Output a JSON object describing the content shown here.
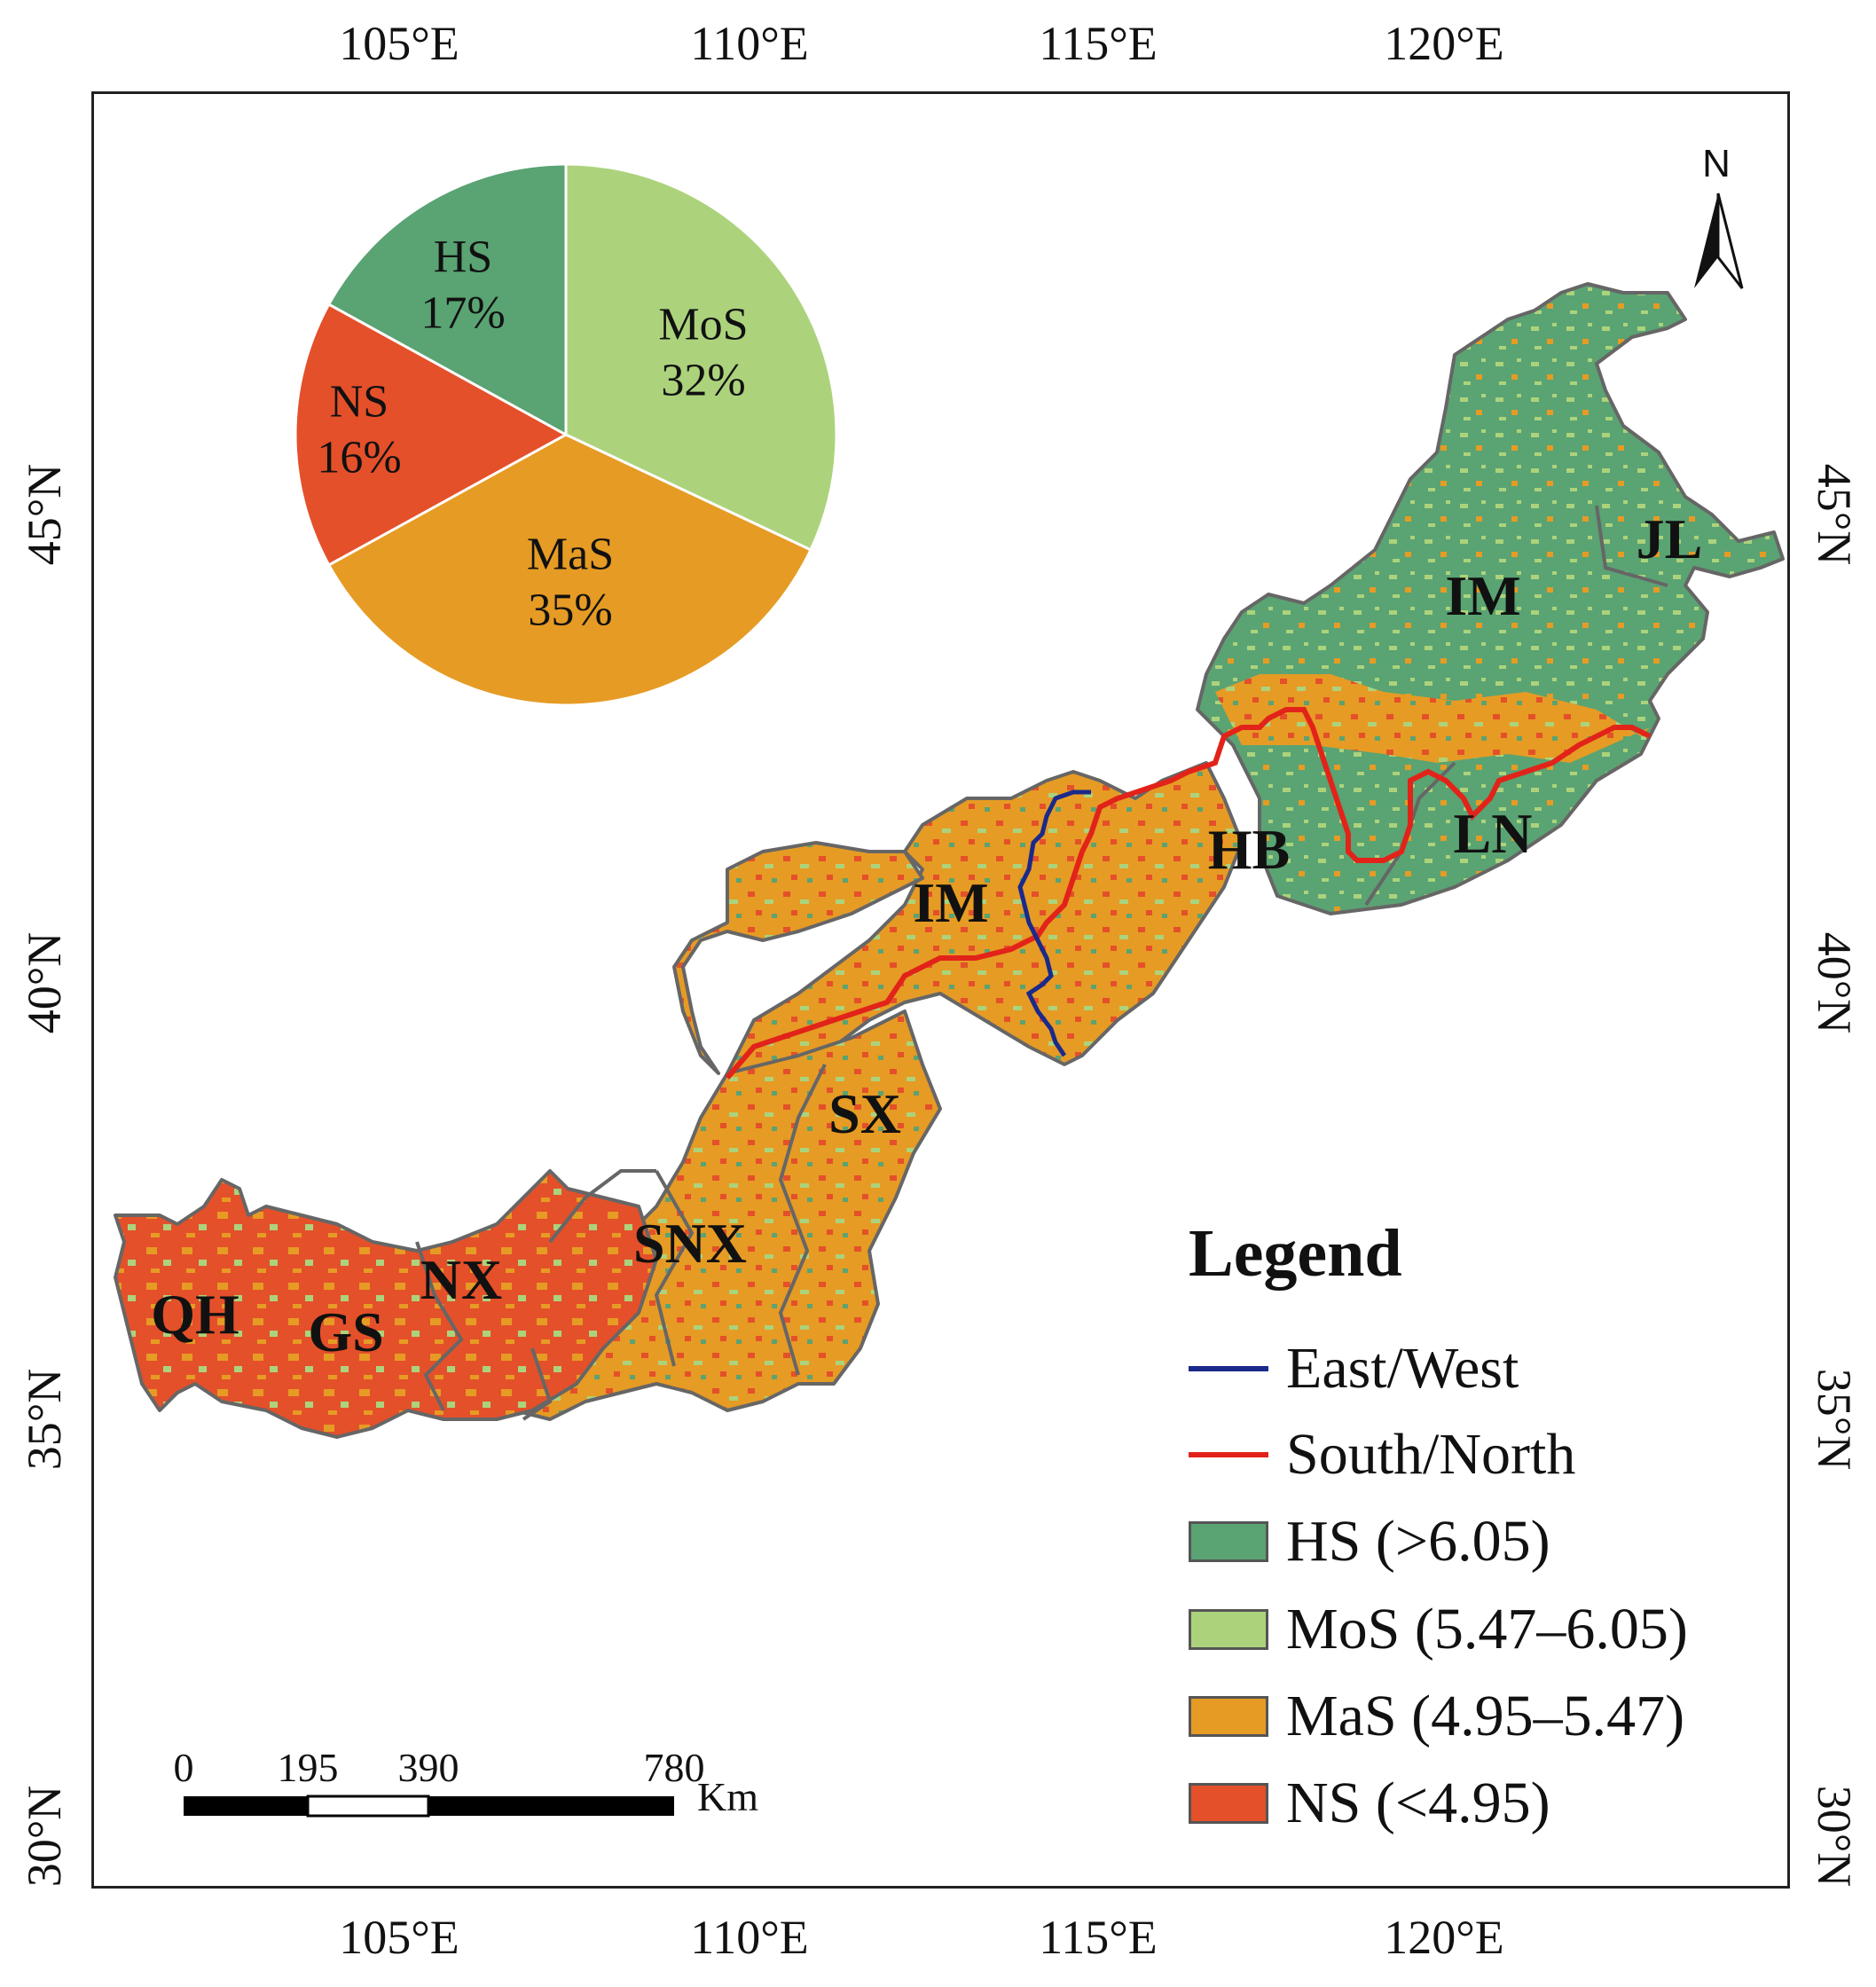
{
  "axes": {
    "top_ticks": [
      "105°E",
      "110°E",
      "115°E",
      "120°E"
    ],
    "bottom_ticks": [
      "105°E",
      "110°E",
      "115°E",
      "120°E"
    ],
    "left_ticks": [
      "45°N",
      "40°N",
      "35°N",
      "30°N"
    ],
    "right_ticks": [
      "45°N",
      "40°N",
      "35°N",
      "30°N"
    ]
  },
  "pie": {
    "slices": [
      {
        "name": "MoS",
        "pct_label": "32%",
        "value": 32,
        "color": "#acd37c"
      },
      {
        "name": "MaS",
        "pct_label": "35%",
        "value": 35,
        "color": "#e69b24"
      },
      {
        "name": "NS",
        "pct_label": "16%",
        "value": 16,
        "color": "#e4502a"
      },
      {
        "name": "HS",
        "pct_label": "17%",
        "value": 17,
        "color": "#5aa373"
      }
    ]
  },
  "provinces": [
    "QH",
    "GS",
    "NX",
    "SNX",
    "SX",
    "IM",
    "HB",
    "LN",
    "JL",
    "IM"
  ],
  "north_arrow": {
    "label": "N"
  },
  "scale_bar": {
    "ticks": [
      "0",
      "195",
      "390",
      "780"
    ],
    "unit": "Km"
  },
  "legend": {
    "title": "Legend",
    "lines": [
      {
        "label": "East/West",
        "color": "#1a2a8a"
      },
      {
        "label": "South/North",
        "color": "#e2231a"
      }
    ],
    "classes": [
      {
        "label": "HS (>6.05)",
        "color": "#5aa373"
      },
      {
        "label": "MoS (5.47–6.05)",
        "color": "#acd37c"
      },
      {
        "label": "MaS (4.95–5.47)",
        "color": "#e69b24"
      },
      {
        "label": "NS (<4.95)",
        "color": "#e4502a"
      }
    ]
  }
}
